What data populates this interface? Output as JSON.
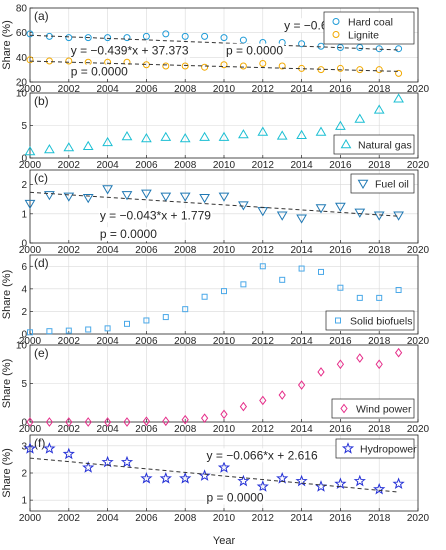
{
  "chart_data": {
    "type": "scatter",
    "x_label": "Year",
    "x_ticks": [
      2000,
      2002,
      2004,
      2006,
      2008,
      2010,
      2012,
      2014,
      2016,
      2018,
      2020
    ],
    "panels": [
      {
        "label": "(a)",
        "ylabel": "Share (%)",
        "ylim": [
          20,
          80
        ],
        "yticks": [
          20,
          40,
          60,
          80
        ],
        "series": [
          {
            "name": "Hard coal",
            "marker": "circle",
            "color": "#1f9bd7",
            "x": [
              2000,
              2001,
              2002,
              2003,
              2004,
              2005,
              2006,
              2007,
              2008,
              2009,
              2010,
              2011,
              2012,
              2013,
              2014,
              2015,
              2016,
              2017,
              2018,
              2019
            ],
            "y": [
              59,
              57,
              56,
              56,
              56,
              56,
              57,
              59,
              57,
              57,
              56,
              54,
              52,
              52,
              51,
              49,
              48,
              48,
              47,
              47
            ],
            "fit": {
              "slope": -0.628,
              "intercept": 58.516
            }
          },
          {
            "name": "Lignite",
            "marker": "circle",
            "color": "#f2a900",
            "x": [
              2000,
              2001,
              2002,
              2003,
              2004,
              2005,
              2006,
              2007,
              2008,
              2009,
              2010,
              2011,
              2012,
              2013,
              2014,
              2015,
              2016,
              2017,
              2018,
              2019
            ],
            "y": [
              38,
              37,
              37,
              36,
              36,
              36,
              34,
              33,
              33,
              32,
              34,
              33,
              35,
              33,
              31,
              30,
              31,
              30,
              30,
              27
            ],
            "fit": {
              "slope": -0.439,
              "intercept": 37.373
            }
          }
        ],
        "annotations": [
          {
            "text": "y = −0.628*x + 58.516",
            "x": 2013.1,
            "y": 66
          },
          {
            "text": "p = 0.0000",
            "x": 2010.1,
            "y": 45.5
          },
          {
            "text": "y = −0.439*x + 37.373",
            "x": 2002.1,
            "y": 45.5
          },
          {
            "text": "p = 0.0000",
            "x": 2002.1,
            "y": 28.5
          }
        ],
        "legend": "top-right"
      },
      {
        "label": "(b)",
        "ylabel": "",
        "ylim": [
          0,
          10
        ],
        "yticks": [
          0,
          5,
          10
        ],
        "series": [
          {
            "name": "Natural gas",
            "marker": "triangle-up",
            "color": "#1bbfd3",
            "x": [
              2000,
              2001,
              2002,
              2003,
              2004,
              2005,
              2006,
              2007,
              2008,
              2009,
              2010,
              2011,
              2012,
              2013,
              2014,
              2015,
              2016,
              2017,
              2018,
              2019
            ],
            "y": [
              1.0,
              1.3,
              1.6,
              1.8,
              2.4,
              3.3,
              3.0,
              3.2,
              3.0,
              3.2,
              3.2,
              3.6,
              4.0,
              3.4,
              3.5,
              4.0,
              4.9,
              6.0,
              7.4,
              9.1
            ]
          }
        ],
        "annotations": [],
        "legend": "bottom-right"
      },
      {
        "label": "(c)",
        "ylabel": "",
        "ylim": [
          0,
          2.5
        ],
        "yticks": [
          0,
          1,
          2
        ],
        "series": [
          {
            "name": "Fuel oil",
            "marker": "triangle-down",
            "color": "#1f78b4",
            "x": [
              2000,
              2001,
              2002,
              2003,
              2004,
              2005,
              2006,
              2007,
              2008,
              2009,
              2010,
              2011,
              2012,
              2013,
              2014,
              2015,
              2016,
              2017,
              2018,
              2019
            ],
            "y": [
              1.35,
              1.65,
              1.6,
              1.55,
              1.85,
              1.65,
              1.7,
              1.6,
              1.6,
              1.55,
              1.6,
              1.3,
              1.1,
              0.95,
              0.85,
              1.2,
              1.25,
              1.05,
              0.95,
              0.95
            ],
            "fit": {
              "slope": -0.043,
              "intercept": 1.779
            }
          }
        ],
        "annotations": [
          {
            "text": "y = −0.043*x + 1.779",
            "x": 2003.6,
            "y": 0.95
          },
          {
            "text": "p = 0.0000",
            "x": 2003.6,
            "y": 0.3
          }
        ],
        "legend": "top-right"
      },
      {
        "label": "(d)",
        "ylabel": "Share (%)",
        "ylim": [
          0,
          7
        ],
        "yticks": [
          0,
          2,
          4,
          6
        ],
        "series": [
          {
            "name": "Solid biofuels",
            "marker": "square",
            "color": "#4aa8e8",
            "x": [
              2000,
              2001,
              2002,
              2003,
              2004,
              2005,
              2006,
              2007,
              2008,
              2009,
              2010,
              2011,
              2012,
              2013,
              2014,
              2015,
              2016,
              2017,
              2018,
              2019
            ],
            "y": [
              0.15,
              0.25,
              0.3,
              0.4,
              0.5,
              0.9,
              1.2,
              1.5,
              2.2,
              3.3,
              3.8,
              4.4,
              6.0,
              4.8,
              5.8,
              5.5,
              4.1,
              3.2,
              3.2,
              3.9
            ]
          }
        ],
        "annotations": [],
        "legend": "bottom-right"
      },
      {
        "label": "(e)",
        "ylabel": "Share (%)",
        "ylim": [
          0,
          10
        ],
        "yticks": [
          0,
          5,
          10
        ],
        "series": [
          {
            "name": "Wind power",
            "marker": "diamond",
            "color": "#e62e8a",
            "x": [
              2000,
              2001,
              2002,
              2003,
              2004,
              2005,
              2006,
              2007,
              2008,
              2009,
              2010,
              2011,
              2012,
              2013,
              2014,
              2015,
              2016,
              2017,
              2018,
              2019
            ],
            "y": [
              0.0,
              0.0,
              0.0,
              0.0,
              0.0,
              0.0,
              0.1,
              0.1,
              0.3,
              0.5,
              1.0,
              2.0,
              2.8,
              3.5,
              4.8,
              6.5,
              7.5,
              8.3,
              7.5,
              9.0
            ]
          }
        ],
        "annotations": [],
        "legend": "bottom-right"
      },
      {
        "label": "(f)",
        "ylabel": "Share (%)",
        "ylim": [
          0.6,
          3.4
        ],
        "yticks": [
          1,
          2,
          3
        ],
        "series": [
          {
            "name": "Hydropower",
            "marker": "star",
            "color": "#2430d6",
            "x": [
              2000,
              2001,
              2002,
              2003,
              2004,
              2005,
              2006,
              2007,
              2008,
              2009,
              2010,
              2011,
              2012,
              2013,
              2014,
              2015,
              2016,
              2017,
              2018,
              2019
            ],
            "y": [
              2.9,
              2.9,
              2.7,
              2.2,
              2.4,
              2.4,
              1.8,
              1.8,
              1.8,
              1.9,
              2.2,
              1.7,
              1.5,
              1.8,
              1.7,
              1.5,
              1.6,
              1.7,
              1.4,
              1.6
            ],
            "fit": {
              "slope": -0.066,
              "intercept": 2.616
            }
          }
        ],
        "annotations": [
          {
            "text": "y = −0.066*x + 2.616",
            "x": 2009.1,
            "y": 2.65
          },
          {
            "text": "p = 0.0000",
            "x": 2009.1,
            "y": 1.1
          }
        ],
        "legend": "top-right"
      }
    ]
  }
}
